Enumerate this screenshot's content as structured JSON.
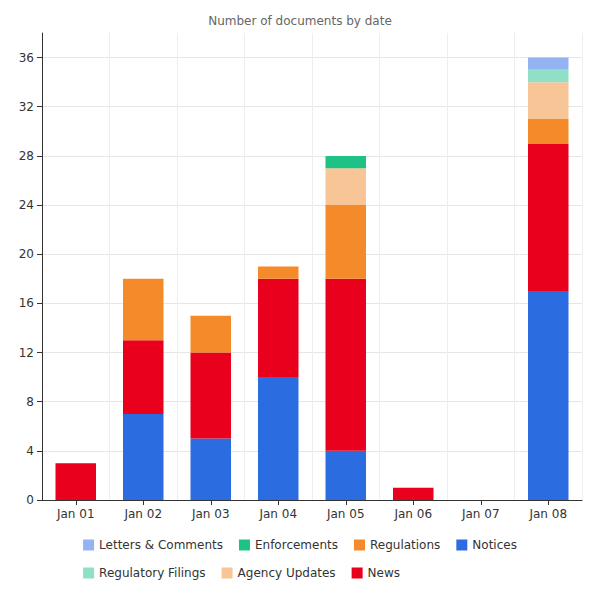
{
  "chart_data": {
    "type": "bar",
    "title": "Number of documents by date",
    "categories": [
      "Jan 01",
      "Jan 02",
      "Jan 03",
      "Jan 04",
      "Jan 05",
      "Jan 06",
      "Jan 07",
      "Jan 08"
    ],
    "stacked": true,
    "grid": true,
    "legend": "bottom",
    "ylim": [
      0,
      38
    ],
    "yticks": [
      0,
      4,
      8,
      12,
      16,
      20,
      24,
      28,
      32,
      36
    ],
    "series": [
      {
        "name": "Notices",
        "color": "#2b6de0",
        "values": [
          0,
          7,
          5,
          10,
          4,
          0,
          0,
          17
        ]
      },
      {
        "name": "News",
        "color": "#e8001c",
        "values": [
          3,
          6,
          7,
          8,
          14,
          1,
          0,
          12
        ]
      },
      {
        "name": "Regulations",
        "color": "#f58a2b",
        "values": [
          0,
          5,
          3,
          1,
          6,
          0,
          0,
          2
        ]
      },
      {
        "name": "Agency Updates",
        "color": "#f7c596",
        "values": [
          0,
          0,
          0,
          0,
          3,
          0,
          0,
          3
        ]
      },
      {
        "name": "Enforcements",
        "color": "#1ec285",
        "values": [
          0,
          0,
          0,
          0,
          1,
          0,
          0,
          0
        ]
      },
      {
        "name": "Regulatory Filings",
        "color": "#8fe0c6",
        "values": [
          0,
          0,
          0,
          0,
          0,
          0,
          0,
          1
        ]
      },
      {
        "name": "Letters & Comments",
        "color": "#94b3f2",
        "values": [
          0,
          0,
          0,
          0,
          0,
          0,
          0,
          1
        ]
      }
    ]
  }
}
